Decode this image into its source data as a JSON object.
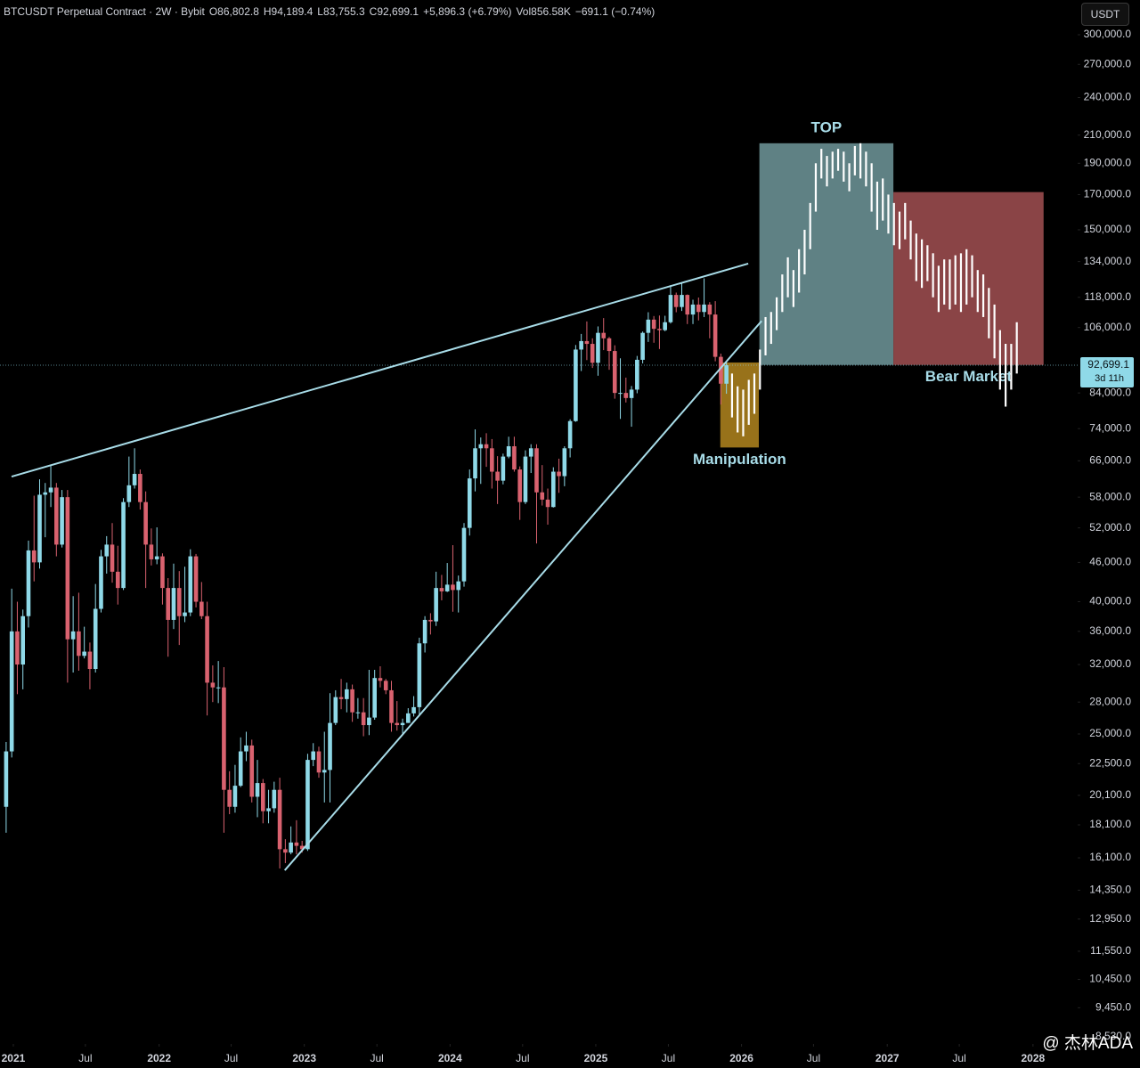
{
  "chart_data": {
    "type": "candlestick",
    "title": "BTCUSDT Perpetual Contract · 2W · Bybit",
    "status_line": [
      "O86,802.8",
      "H94,189.4",
      "L83,755.3",
      "C92,699.1",
      "+5,896.3 (+6.79%)",
      "Vol856.58K",
      "−691.1 (−0.74%)"
    ],
    "currency": "USDT",
    "watermark": "@ 杰林ADA",
    "y_scale": "log",
    "up_color": "#8fd9e8",
    "down_color": "#d9626f",
    "x": [
      0,
      1,
      2,
      3,
      4,
      5,
      6,
      7,
      8,
      9,
      10,
      11,
      12,
      13,
      14,
      15,
      16,
      17,
      18,
      19,
      20,
      21,
      22,
      23,
      24,
      25,
      26,
      27,
      28,
      29,
      30,
      31,
      32,
      33,
      34,
      35,
      36,
      37,
      38,
      39,
      40,
      41,
      42,
      43,
      44,
      45,
      46,
      47,
      48,
      49,
      50,
      51,
      52,
      53,
      54,
      55,
      56,
      57,
      58,
      59,
      60,
      61,
      62,
      63,
      64,
      65,
      66,
      67,
      68,
      69,
      70,
      71,
      72,
      73,
      74,
      75,
      76,
      77,
      78,
      79,
      80,
      81,
      82,
      83,
      84,
      85,
      86,
      87,
      88,
      89,
      90,
      91,
      92,
      93,
      94,
      95,
      96,
      97,
      98,
      99,
      100,
      101,
      102,
      103,
      104,
      105,
      106,
      107,
      108,
      109,
      110,
      111,
      112,
      113,
      114,
      115,
      116,
      117,
      118,
      119,
      120,
      121,
      122,
      123,
      124,
      125,
      126,
      127,
      128,
      129
    ],
    "open": [
      19300,
      23500,
      36000,
      32000,
      38000,
      48000,
      46000,
      58500,
      59000,
      60000,
      49000,
      58000,
      35000,
      36000,
      33000,
      33500,
      31500,
      39000,
      47000,
      49000,
      44500,
      42000,
      57000,
      60500,
      63000,
      57000,
      49000,
      46500,
      47000,
      42000,
      37500,
      42000,
      38000,
      38500,
      47000,
      40000,
      38000,
      30000,
      29500,
      29500,
      20500,
      19300,
      20800,
      23500,
      24000,
      20000,
      21000,
      19000,
      19200,
      20500,
      16600,
      16400,
      17000,
      16800,
      16600,
      22800,
      23500,
      21800,
      22000,
      26000,
      28500,
      28300,
      29300,
      27000,
      27000,
      25800,
      26500,
      30500,
      30200,
      29200,
      26000,
      25800,
      26000,
      26900,
      27500,
      34500,
      37500,
      37300,
      42000,
      41500,
      42500,
      41700,
      43000,
      52000,
      62000,
      69000,
      70000,
      69000,
      63500,
      61500,
      67000,
      69500,
      64000,
      57000,
      67000,
      69000,
      59000,
      57500,
      56000,
      63500,
      62500,
      69000,
      76000,
      98000,
      101000,
      100000,
      93500,
      104000,
      102000,
      97500,
      84000,
      84000,
      82500,
      85000,
      94500,
      104000,
      109000,
      105500,
      105000,
      108000,
      119000,
      114000,
      119000,
      111000,
      115000,
      112000,
      115000,
      111000,
      95500,
      86802.8
    ],
    "high": [
      24300,
      41900,
      40000,
      38900,
      49700,
      58300,
      61800,
      61000,
      64800,
      61000,
      59500,
      59500,
      40800,
      41300,
      36600,
      34600,
      42600,
      48100,
      50500,
      52900,
      48800,
      57800,
      67000,
      69000,
      64000,
      59200,
      51900,
      52100,
      47500,
      43500,
      45800,
      44600,
      45300,
      48200,
      47400,
      42900,
      40000,
      31900,
      32400,
      31700,
      21900,
      22400,
      24700,
      25200,
      24500,
      22800,
      21300,
      20500,
      21100,
      21400,
      17200,
      18000,
      18400,
      17100,
      23300,
      24200,
      23900,
      25200,
      28900,
      29200,
      30400,
      30000,
      29800,
      28400,
      28400,
      31400,
      31400,
      31800,
      30400,
      30200,
      28100,
      26400,
      27400,
      28600,
      35200,
      38000,
      38400,
      44500,
      44000,
      45900,
      48900,
      43900,
      52900,
      64000,
      73800,
      71700,
      72800,
      71300,
      67100,
      67700,
      71900,
      71900,
      64700,
      68500,
      70000,
      70000,
      65000,
      59800,
      64500,
      66500,
      69500,
      76500,
      99600,
      103600,
      108300,
      102000,
      106400,
      109600,
      102500,
      99500,
      95000,
      88700,
      86100,
      95800,
      104500,
      111900,
      110400,
      110600,
      110500,
      123200,
      120000,
      124500,
      119200,
      117000,
      117900,
      126200,
      116000,
      116400,
      96600,
      94189.4
    ],
    "low": [
      17600,
      23000,
      28800,
      29300,
      36500,
      43000,
      45000,
      50300,
      56000,
      47000,
      48500,
      30000,
      31100,
      31300,
      32700,
      29300,
      31100,
      38500,
      44200,
      42800,
      39600,
      41700,
      56000,
      59800,
      55500,
      42000,
      45500,
      45700,
      39600,
      32900,
      36300,
      34300,
      37200,
      38000,
      39200,
      37600,
      26700,
      28000,
      27900,
      17600,
      18800,
      18900,
      20700,
      22700,
      19600,
      18600,
      18200,
      18200,
      18900,
      15500,
      15800,
      16300,
      16300,
      16400,
      16500,
      22300,
      21400,
      19600,
      19600,
      25800,
      27300,
      27000,
      26100,
      26400,
      24800,
      24900,
      26300,
      29500,
      28800,
      25200,
      25300,
      24900,
      26000,
      26600,
      26800,
      33400,
      35600,
      36700,
      40200,
      41400,
      38600,
      38500,
      42200,
      50600,
      59200,
      60800,
      64600,
      59800,
      56600,
      60700,
      66600,
      63500,
      53500,
      56600,
      63200,
      49200,
      56300,
      52600,
      55900,
      58900,
      60300,
      66800,
      75800,
      90800,
      94400,
      91800,
      89300,
      97800,
      91200,
      82300,
      76600,
      81200,
      74500,
      83900,
      93300,
      100700,
      100400,
      98200,
      104600,
      107500,
      111900,
      112400,
      107300,
      107300,
      108700,
      110000,
      102000,
      94000,
      80600,
      83755.3
    ],
    "close": [
      23500,
      36000,
      32000,
      38000,
      48000,
      46000,
      58500,
      59000,
      60000,
      49000,
      58000,
      35000,
      36000,
      33000,
      33500,
      31500,
      39000,
      47000,
      49000,
      44500,
      42000,
      57000,
      60500,
      63000,
      57000,
      49000,
      46500,
      47000,
      42000,
      37500,
      42000,
      38000,
      38500,
      47000,
      40000,
      38000,
      30000,
      29500,
      29500,
      20500,
      19300,
      20800,
      23500,
      24000,
      20000,
      21000,
      19000,
      19200,
      20500,
      16600,
      16400,
      17000,
      16800,
      16600,
      22800,
      23500,
      21800,
      22000,
      26000,
      28500,
      28300,
      29300,
      27000,
      27000,
      25800,
      26500,
      30500,
      30200,
      29200,
      26000,
      25800,
      26000,
      26900,
      27500,
      34500,
      37500,
      37300,
      42000,
      41500,
      42500,
      41700,
      43000,
      52000,
      62000,
      69000,
      70000,
      69000,
      63500,
      61500,
      67000,
      69500,
      64000,
      57000,
      67000,
      69000,
      59000,
      57500,
      56000,
      63500,
      62500,
      69000,
      76000,
      98000,
      101000,
      100000,
      93500,
      104000,
      102000,
      97500,
      84000,
      84000,
      82500,
      85000,
      94500,
      104000,
      109000,
      105500,
      105000,
      108000,
      119000,
      114000,
      119000,
      111000,
      115000,
      112000,
      115000,
      111000,
      95500,
      86802.8,
      92699.1
    ],
    "projection": {
      "color": "#ffffff",
      "x": [
        130,
        131,
        132,
        133,
        134,
        135,
        136,
        137,
        138,
        139,
        140,
        141,
        142,
        143,
        144,
        145,
        146,
        147,
        148,
        149,
        150,
        151,
        152,
        153,
        154,
        155,
        156,
        157,
        158,
        159,
        160,
        161,
        162,
        163,
        164,
        165,
        166,
        167,
        168,
        169,
        170,
        171,
        172,
        173,
        174,
        175,
        176,
        177,
        178,
        179,
        180,
        181
      ],
      "high": [
        90000,
        86000,
        85000,
        88000,
        90000,
        98000,
        110000,
        112000,
        118000,
        128000,
        136000,
        130000,
        140000,
        150000,
        165000,
        190000,
        200000,
        195000,
        198000,
        200000,
        198000,
        190000,
        202000,
        204000,
        198000,
        190000,
        178000,
        180000,
        170000,
        165000,
        160000,
        165000,
        155000,
        148000,
        145000,
        142000,
        138000,
        132000,
        135000,
        135000,
        137000,
        138000,
        140000,
        137000,
        130000,
        128000,
        122000,
        115000,
        105000,
        100000,
        100000,
        108000
      ],
      "low": [
        77000,
        73000,
        72000,
        75000,
        78000,
        85000,
        96000,
        100000,
        105000,
        112000,
        118000,
        114000,
        120000,
        128000,
        140000,
        160000,
        180000,
        175000,
        180000,
        185000,
        178000,
        172000,
        182000,
        180000,
        175000,
        160000,
        150000,
        155000,
        148000,
        142000,
        140000,
        145000,
        135000,
        125000,
        122000,
        125000,
        118000,
        112000,
        115000,
        113000,
        115000,
        112000,
        115000,
        118000,
        112000,
        110000,
        102000,
        95000,
        85000,
        80000,
        85000,
        90000
      ]
    },
    "zones": [
      {
        "label": "Manipulation",
        "label_side": "bottom",
        "color": "#98721a",
        "x": [
          127.9,
          134.8
        ],
        "y": [
          69200,
          93600
        ]
      },
      {
        "label": "TOP",
        "label_side": "top",
        "color": "#5f8184",
        "x": [
          134.9,
          158.9
        ],
        "y": [
          92800,
          204000
        ]
      },
      {
        "label": "Bear Market",
        "label_side": "bottom",
        "color": "#8a4446",
        "x": [
          158.9,
          185.8
        ],
        "y": [
          92800,
          171500
        ]
      }
    ],
    "zone_label_color": "#a8dce8",
    "trendlines": {
      "color": "#a8dce8",
      "lines": [
        {
          "x": [
            0.97,
            132.9
          ],
          "y": [
            62400,
            133000
          ]
        },
        {
          "x": [
            49.9,
            135.3
          ],
          "y": [
            15400,
            108500
          ]
        }
      ]
    },
    "last_price": {
      "value": 92699.1,
      "label": "92,699.1",
      "countdown": "3d 11h"
    },
    "xlim": [
      -1.1,
      191.9
    ],
    "ylim": [
      8530,
      300000
    ],
    "xticks": [
      {
        "value": 1.29,
        "label": "2021"
      },
      {
        "value": 14.2,
        "label": "Jul"
      },
      {
        "value": 27.4,
        "label": "2022"
      },
      {
        "value": 40.3,
        "label": "Jul"
      },
      {
        "value": 53.4,
        "label": "2023"
      },
      {
        "value": 66.4,
        "label": "Jul"
      },
      {
        "value": 79.5,
        "label": "2024"
      },
      {
        "value": 92.5,
        "label": "Jul"
      },
      {
        "value": 105.6,
        "label": "2025"
      },
      {
        "value": 118.6,
        "label": "Jul"
      },
      {
        "value": 131.7,
        "label": "2026"
      },
      {
        "value": 144.6,
        "label": "Jul"
      },
      {
        "value": 157.8,
        "label": "2027"
      },
      {
        "value": 170.7,
        "label": "Jul"
      },
      {
        "value": 183.9,
        "label": "2028"
      }
    ],
    "yticks": [
      {
        "value": 300000,
        "label": "300,000.0"
      },
      {
        "value": 270000,
        "label": "270,000.0"
      },
      {
        "value": 240000,
        "label": "240,000.0"
      },
      {
        "value": 210000,
        "label": "210,000.0"
      },
      {
        "value": 190000,
        "label": "190,000.0"
      },
      {
        "value": 170000,
        "label": "170,000.0"
      },
      {
        "value": 150000,
        "label": "150,000.0"
      },
      {
        "value": 134000,
        "label": "134,000.0"
      },
      {
        "value": 118000,
        "label": "118,000.0"
      },
      {
        "value": 106000,
        "label": "106,000.0"
      },
      {
        "value": 84000,
        "label": "84,000.0"
      },
      {
        "value": 74000,
        "label": "74,000.0"
      },
      {
        "value": 66000,
        "label": "66,000.0"
      },
      {
        "value": 58000,
        "label": "58,000.0"
      },
      {
        "value": 52000,
        "label": "52,000.0"
      },
      {
        "value": 46000,
        "label": "46,000.0"
      },
      {
        "value": 40000,
        "label": "40,000.0"
      },
      {
        "value": 36000,
        "label": "36,000.0"
      },
      {
        "value": 32000,
        "label": "32,000.0"
      },
      {
        "value": 28000,
        "label": "28,000.0"
      },
      {
        "value": 25000,
        "label": "25,000.0"
      },
      {
        "value": 22500,
        "label": "22,500.0"
      },
      {
        "value": 20100,
        "label": "20,100.0"
      },
      {
        "value": 18100,
        "label": "18,100.0"
      },
      {
        "value": 16100,
        "label": "16,100.0"
      },
      {
        "value": 14350,
        "label": "14,350.0"
      },
      {
        "value": 12950,
        "label": "12,950.0"
      },
      {
        "value": 11550,
        "label": "11,550.0"
      },
      {
        "value": 10450,
        "label": "10,450.0"
      },
      {
        "value": 9450,
        "label": "9,450.0"
      },
      {
        "value": 8530,
        "label": "8,530.0"
      }
    ]
  }
}
